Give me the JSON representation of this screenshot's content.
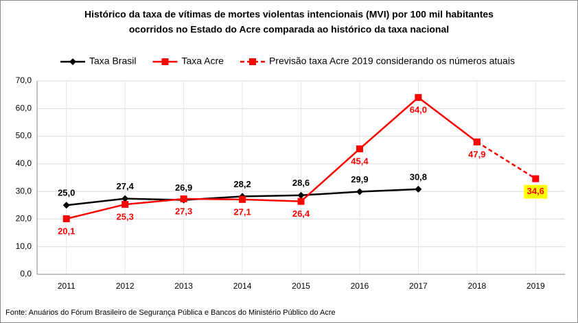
{
  "chart_data": {
    "type": "line",
    "title": [
      "Histórico da taxa de vítimas de mortes violentas intencionais (MVI) por 100 mil habitantes",
      "ocorridos no Estado do Acre comparada ao histórico da taxa nacional"
    ],
    "categories": [
      "2011",
      "2012",
      "2013",
      "2014",
      "2015",
      "2016",
      "2017",
      "2018",
      "2019"
    ],
    "series": [
      {
        "name": "Taxa Brasil",
        "color": "#000000",
        "marker": "diamond",
        "dash": false,
        "label_side": "above",
        "values": [
          25.0,
          27.4,
          26.9,
          28.2,
          28.6,
          29.9,
          30.8,
          null,
          null
        ],
        "value_labels": [
          "25,0",
          "27,4",
          "26,9",
          "28,2",
          "28,6",
          "29,9",
          "30,8",
          null,
          null
        ]
      },
      {
        "name": "Taxa Acre",
        "color": "#ff0000",
        "marker": "square",
        "dash": false,
        "label_side": "below",
        "values": [
          20.1,
          25.3,
          27.3,
          27.1,
          26.4,
          45.4,
          64.0,
          47.9,
          null
        ],
        "value_labels": [
          "20,1",
          "25,3",
          "27,3",
          "27,1",
          "26,4",
          "45,4",
          "64,0",
          "47,9",
          null
        ]
      },
      {
        "name": "Previsão taxa Acre 2019 considerando os números atuais",
        "color": "#ff0000",
        "marker": "square",
        "dash": true,
        "label_side": "below",
        "label_background": "#ffff00",
        "values": [
          null,
          null,
          null,
          null,
          null,
          null,
          null,
          47.9,
          34.6
        ],
        "value_labels": [
          null,
          null,
          null,
          null,
          null,
          null,
          null,
          null,
          "34,6"
        ]
      }
    ],
    "ylim": [
      0,
      70
    ],
    "yticks": [
      {
        "value": 0,
        "label": "0,0"
      },
      {
        "value": 10,
        "label": "10,0"
      },
      {
        "value": 20,
        "label": "20,0"
      },
      {
        "value": 30,
        "label": "30,0"
      },
      {
        "value": 40,
        "label": "40,0"
      },
      {
        "value": 50,
        "label": "50,0"
      },
      {
        "value": 60,
        "label": "60,0"
      },
      {
        "value": 70,
        "label": "70,0"
      }
    ],
    "grid": true,
    "xgrid": true,
    "legend": "top",
    "source": "Fonte: Anuários do Fórum Brasileiro de Segurança Pública e Bancos do Ministério Público do Acre"
  }
}
